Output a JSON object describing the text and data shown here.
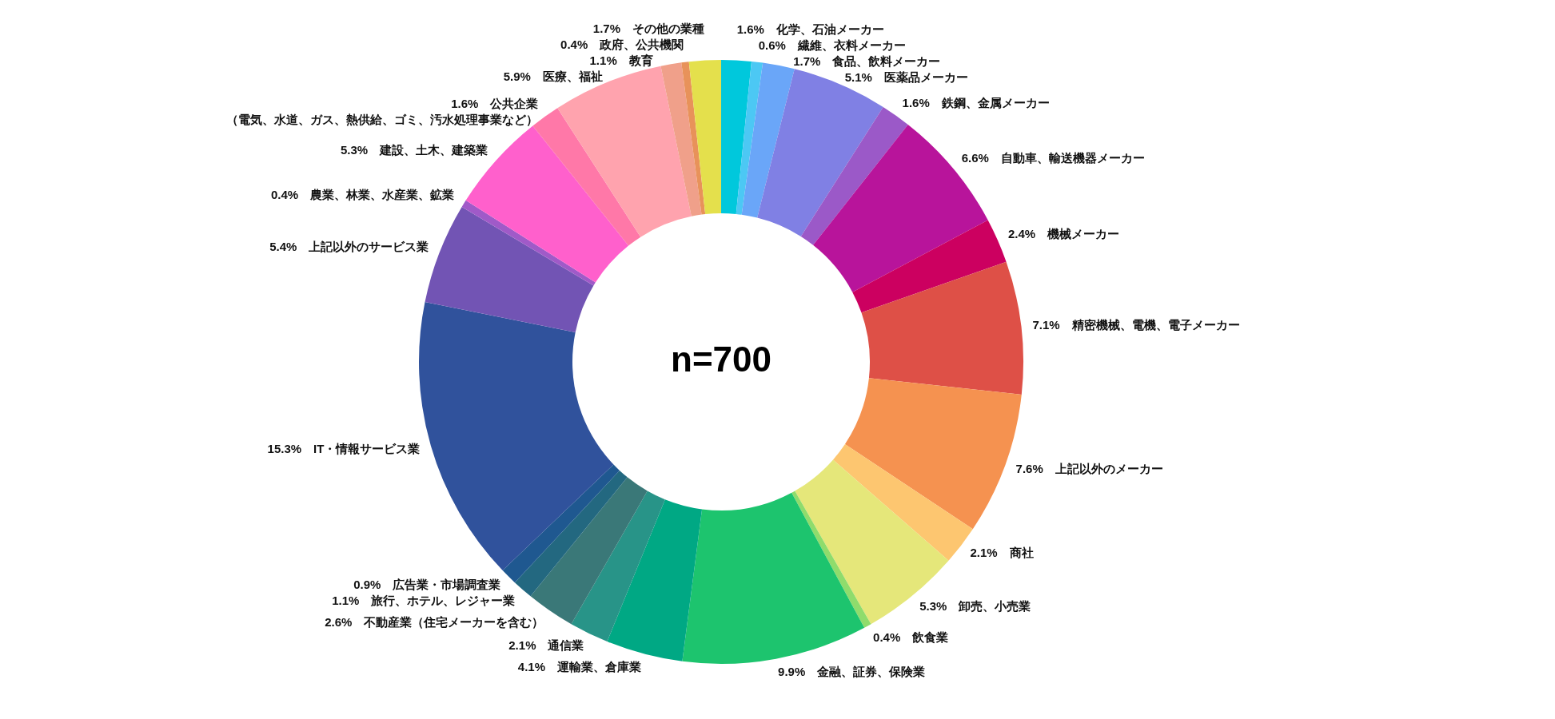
{
  "chart_data": {
    "type": "donut",
    "categories": [
      "化学、石油メーカー",
      "繊維、衣料メーカー",
      "食品、飲料メーカー",
      "医薬品メーカー",
      "鉄鋼、金属メーカー",
      "自動車、輸送機器メーカー",
      "機械メーカー",
      "精密機械、電機、電子メーカー",
      "上記以外のメーカー",
      "商社",
      "卸売、小売業",
      "飲食業",
      "金融、証券、保険業",
      "運輸業、倉庫業",
      "通信業",
      "不動産業（住宅メーカーを含む）",
      "旅行、ホテル、レジャー業",
      "広告業・市場調査業",
      "IT・情報サービス業",
      "上記以外のサービス業",
      "農業、林業、水産業、鉱業",
      "建設、土木、建築業",
      "公共企業（電気、水道、ガス、熱供給、ゴミ、汚水処理事業など）",
      "医療、福祉",
      "教育",
      "政府、公共機関",
      "その他の業種"
    ],
    "values": [
      1.6,
      0.6,
      1.7,
      5.1,
      1.6,
      6.6,
      2.4,
      7.1,
      7.6,
      2.1,
      5.3,
      0.4,
      9.9,
      4.1,
      2.1,
      2.6,
      1.1,
      0.9,
      15.3,
      5.4,
      0.4,
      5.3,
      1.6,
      5.9,
      1.1,
      0.4,
      1.7
    ],
    "value_labels": [
      "1.6%",
      "0.6%",
      "1.7%",
      "5.1%",
      "1.6%",
      "6.6%",
      "2.4%",
      "7.1%",
      "7.6%",
      "2.1%",
      "5.3%",
      "0.4%",
      "9.9%",
      "4.1%",
      "2.1%",
      "2.6%",
      "1.1%",
      "0.9%",
      "15.3%",
      "5.4%",
      "0.4%",
      "5.3%",
      "1.6%",
      "5.9%",
      "1.1%",
      "0.4%",
      "1.7%"
    ],
    "colors": [
      "#00c8dc",
      "#4cc8f4",
      "#6aa6f8",
      "#8080e4",
      "#9b59c8",
      "#b8149b",
      "#cc0060",
      "#de5047",
      "#f59250",
      "#fdc670",
      "#e5e77a",
      "#8fdc6c",
      "#1dc46e",
      "#00a884",
      "#289488",
      "#3a7878",
      "#236880",
      "#1f5890",
      "#30529c",
      "#7254b4",
      "#a05ac8",
      "#ff60cc",
      "#ff78a8",
      "#ffa3ae",
      "#f0a08a",
      "#e8925a",
      "#e4e04c"
    ],
    "annotations": [
      "n=700"
    ]
  }
}
